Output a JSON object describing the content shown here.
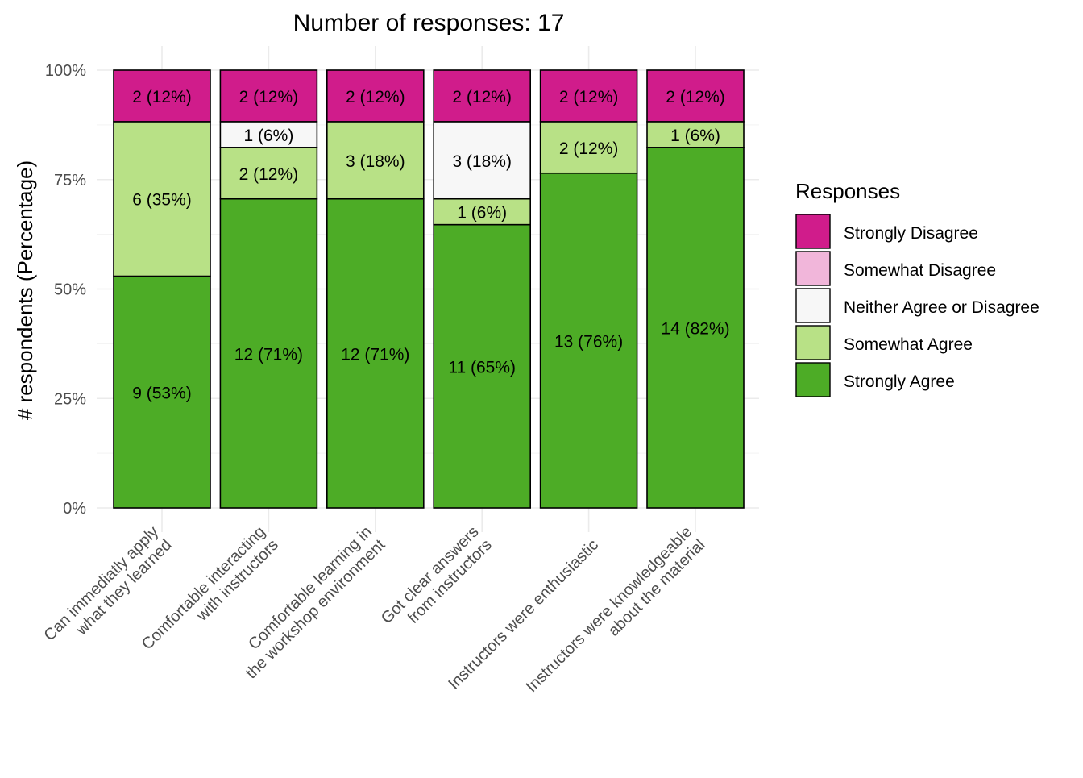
{
  "chart_data": {
    "type": "bar",
    "stacked": true,
    "percent": true,
    "title": "Number of responses: 17",
    "ylabel": "# respondents (Percentage)",
    "xlabel": "",
    "ylim": [
      0,
      100
    ],
    "y_ticks": [
      "0%",
      "25%",
      "50%",
      "75%",
      "100%"
    ],
    "y_tick_values": [
      0,
      25,
      50,
      75,
      100
    ],
    "grid": true,
    "legend": {
      "title": "Responses",
      "placement": "right"
    },
    "categories": [
      [
        "Can immediatly apply",
        "what they learned"
      ],
      [
        "Comfortable interacting",
        "with instructors"
      ],
      [
        "Comfortable learning in",
        "the workshop environment"
      ],
      [
        "Got clear answers",
        "from instructors"
      ],
      [
        "Instructors were enthusiastic"
      ],
      [
        "Instructors were knowledgeable",
        "about the material"
      ]
    ],
    "series": [
      {
        "name": "Strongly Agree",
        "color": "#4dac26",
        "counts": [
          9,
          12,
          12,
          11,
          13,
          14
        ],
        "labels": [
          "9 (53%)",
          "12 (71%)",
          "12 (71%)",
          "11 (65%)",
          "13 (76%)",
          "14 (82%)"
        ]
      },
      {
        "name": "Somewhat Agree",
        "color": "#b8e186",
        "counts": [
          6,
          2,
          3,
          1,
          2,
          1
        ],
        "labels": [
          "6 (35%)",
          "2 (12%)",
          "3 (18%)",
          "1 (6%)",
          "2 (12%)",
          "1 (6%)"
        ]
      },
      {
        "name": "Neither Agree or Disagree",
        "color": "#f7f7f7",
        "counts": [
          0,
          1,
          0,
          3,
          0,
          0
        ],
        "labels": [
          "",
          "1 (6%)",
          "",
          "3 (18%)",
          "",
          ""
        ]
      },
      {
        "name": "Somewhat Disagree",
        "color": "#f1b6da",
        "counts": [
          0,
          0,
          0,
          0,
          0,
          0
        ],
        "labels": [
          "",
          "",
          "",
          "",
          "",
          ""
        ]
      },
      {
        "name": "Strongly Disagree",
        "color": "#d01c8b",
        "counts": [
          2,
          2,
          2,
          2,
          2,
          2
        ],
        "labels": [
          "2 (12%)",
          "2 (12%)",
          "2 (12%)",
          "2 (12%)",
          "2 (12%)",
          "2 (12%)"
        ]
      }
    ],
    "legend_order": [
      "Strongly Disagree",
      "Somewhat Disagree",
      "Neither Agree or Disagree",
      "Somewhat Agree",
      "Strongly Agree"
    ]
  }
}
